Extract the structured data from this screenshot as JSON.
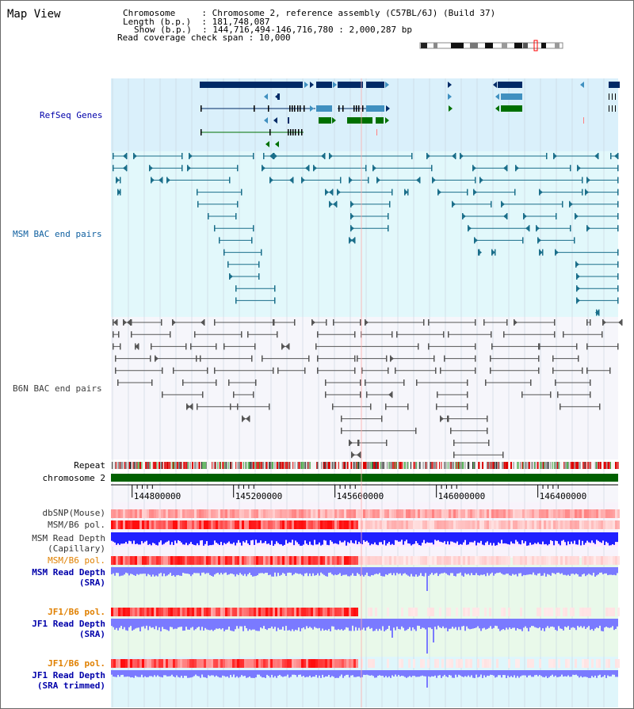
{
  "title": "Map View",
  "info": {
    "chromosome_label": "Chromosome",
    "chromosome_value": "Chromosome 2, reference assembly (C57BL/6J) (Build 37)",
    "length_label": "Length (b.p.)",
    "length_value": "181,748,087",
    "show_label": "Show (b.p.)",
    "show_value": "144,716,494-146,716,780 : 2,000,287 bp",
    "coverage_label": "Read coverage check span",
    "coverage_value": "10,000"
  },
  "region": {
    "start": 144716494,
    "end": 146716780
  },
  "axis": {
    "ticks": [
      {
        "pos": 144800000,
        "label": "144800000"
      },
      {
        "pos": 145200000,
        "label": "145200000"
      },
      {
        "pos": 145600000,
        "label": "145600000"
      },
      {
        "pos": 146000000,
        "label": "146000000"
      },
      {
        "pos": 146400000,
        "label": "146400000"
      }
    ]
  },
  "tracks": {
    "refseq": {
      "label": "RefSeq Genes",
      "color": "#0000aa"
    },
    "msm_bac": {
      "label": "MSM BAC end pairs",
      "color": "#1060a0"
    },
    "b6n_bac": {
      "label": "B6N BAC end pairs",
      "color": "#404040"
    },
    "repeat": {
      "label": "Repeat"
    },
    "chromosome": {
      "label": "chromosome 2"
    },
    "dbsnp": {
      "label": "dbSNP(Mouse)"
    },
    "msm_pol": {
      "label": "MSM/B6 pol."
    },
    "msm_depth_cap": {
      "label1": "MSM Read Depth",
      "label2": "(Capillary)"
    },
    "msm_pol2": {
      "label": "MSM/B6 pol.",
      "color": "#e08000"
    },
    "msm_depth_sra": {
      "label1": "MSM Read Depth",
      "label2": "(SRA)",
      "color": "#0000aa"
    },
    "jf1_pol": {
      "label": "JF1/B6 pol.",
      "color": "#e08000"
    },
    "jf1_depth_sra": {
      "label1": "JF1 Read Depth",
      "label2": "(SRA)",
      "color": "#0000aa"
    },
    "jf1_pol2": {
      "label": "JF1/B6 pol.",
      "color": "#e08000"
    },
    "jf1_depth_trim": {
      "label1": "JF1 Read Depth",
      "label2": "(SRA trimmed)",
      "color": "#0000aa"
    }
  },
  "colors": {
    "gene_dark": "#002a66",
    "gene_mid": "#4090c0",
    "gene_green": "#007000",
    "msm_line": "#1a6e8a",
    "b6n_line": "#555555",
    "depth_blue": "#2020ff",
    "depth_light": "#7a7aff",
    "repeat_red": "#dd0000",
    "chrom_green": "#006000"
  }
}
